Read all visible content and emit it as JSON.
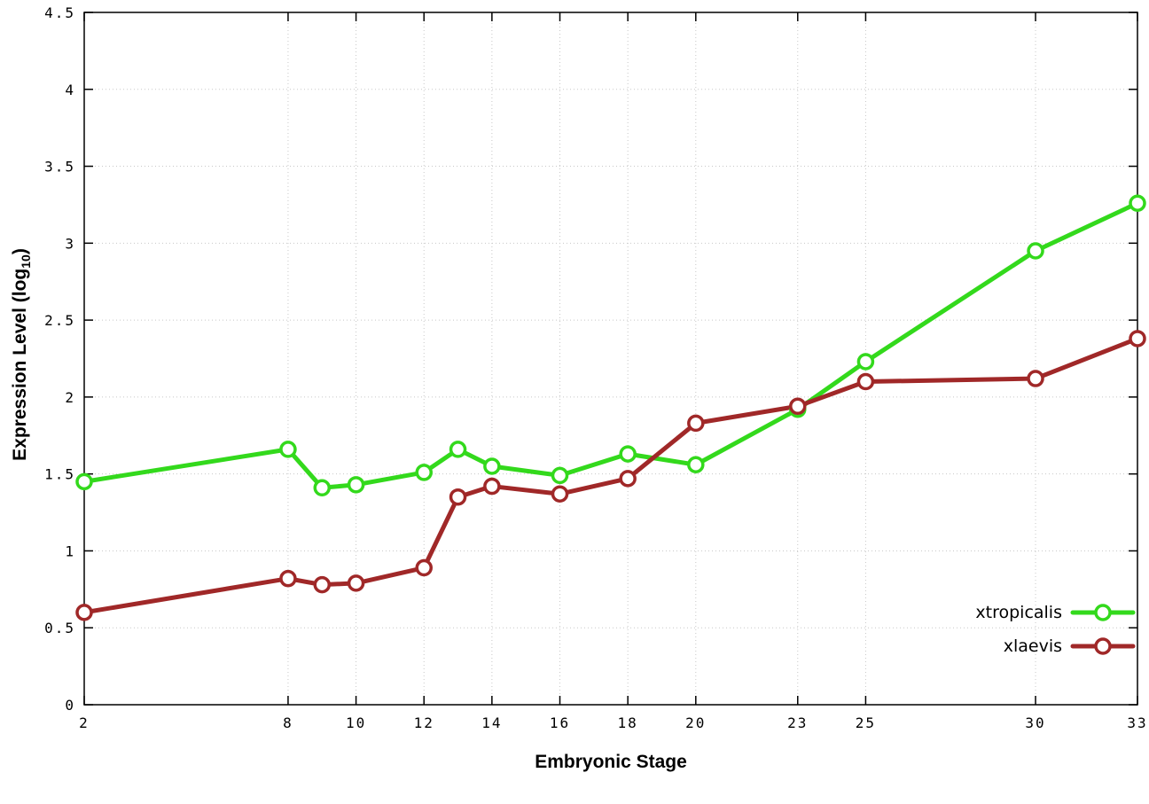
{
  "axes": {
    "ylabel_prefix": "Expression Level (log",
    "ylabel_sub": "10",
    "ylabel_suffix": ")",
    "xlabel": "Embryonic Stage"
  },
  "chart_data": {
    "type": "line",
    "title": "",
    "xlabel": "Embryonic Stage",
    "ylabel": "Expression Level (log10)",
    "xlim": [
      2,
      33
    ],
    "ylim": [
      0,
      4.5
    ],
    "grid": true,
    "legend_position": "bottom-right",
    "background": "#ffffff",
    "grid_color": "#c8c8c8",
    "x": [
      2,
      8,
      9,
      10,
      12,
      13,
      14,
      16,
      18,
      20,
      23,
      25,
      30,
      33
    ],
    "xticks": [
      2,
      8,
      10,
      12,
      14,
      16,
      18,
      20,
      23,
      25,
      30,
      33
    ],
    "xticklabels": [
      "2",
      "8",
      "10",
      "12",
      "14",
      "16",
      "18",
      "20",
      "23",
      "25",
      "30",
      "33"
    ],
    "yticks": [
      0,
      0.5,
      1,
      1.5,
      2,
      2.5,
      3,
      3.5,
      4,
      4.5
    ],
    "yticklabels": [
      "0",
      "0.5",
      "1",
      "1.5",
      "2",
      "2.5",
      "3",
      "3.5",
      "4",
      "4.5"
    ],
    "series": [
      {
        "name": "xtropicalis",
        "color": "#33d91c",
        "values": [
          1.45,
          1.66,
          1.41,
          1.43,
          1.51,
          1.66,
          1.55,
          1.49,
          1.63,
          1.56,
          1.92,
          2.23,
          2.95,
          3.26
        ]
      },
      {
        "name": "xlaevis",
        "color": "#a02828",
        "values": [
          0.6,
          0.82,
          0.78,
          0.79,
          0.89,
          1.35,
          1.42,
          1.37,
          1.47,
          1.83,
          1.94,
          2.1,
          2.12,
          2.38
        ]
      }
    ]
  }
}
